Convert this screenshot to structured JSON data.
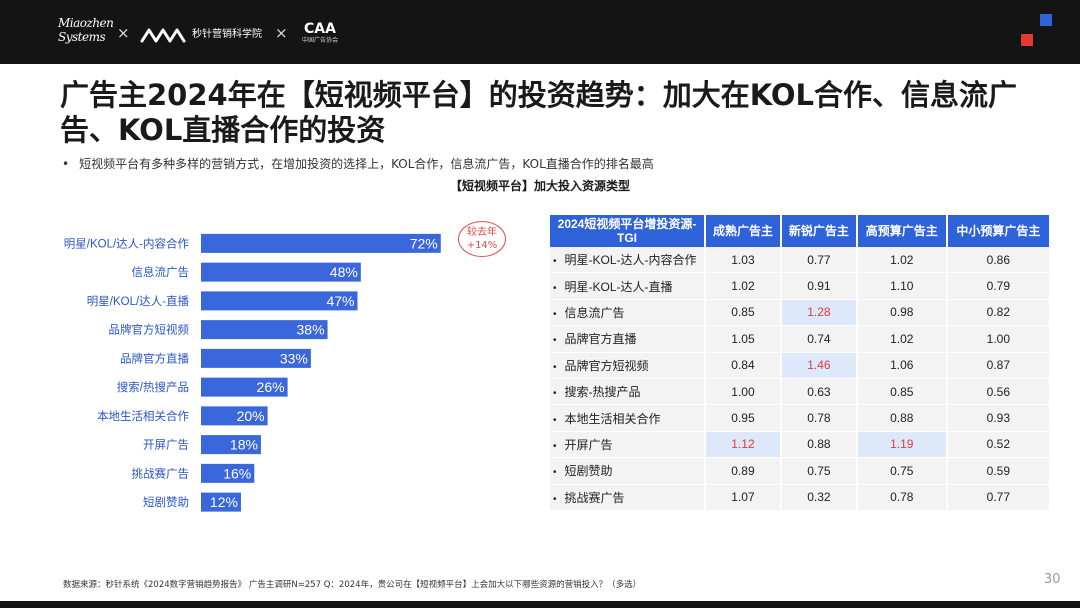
{
  "header": {
    "logo_miaozhen_line1": "Miaozhen",
    "logo_miaozhen_line2": "Systems",
    "separator": "×",
    "logo_academy_text": "秒针营销科学院",
    "logo_caa": "CAA",
    "logo_caa_sub": "中国广告协会",
    "brand_blue": "#2e62d9",
    "brand_red": "#e53935"
  },
  "title": "广告主2024年在【短视频平台】的投资趋势：加大在KOL合作、信息流广告、KOL直播合作的投资",
  "bullet": "短视频平台有多种多样的营销方式，在增加投资的选择上，KOL合作，信息流广告，KOL直播合作的排名最高",
  "chart_title": "【短视频平台】加大投入资源类型",
  "badge": {
    "line1": "较去年",
    "line2": "+14%"
  },
  "chart_data": [
    {
      "type": "bar",
      "orientation": "horizontal",
      "categories": [
        "明星/KOL/达人-内容合作",
        "信息流广告",
        "明星/KOL/达人-直播",
        "品牌官方短视频",
        "品牌官方直播",
        "搜索/热搜产品",
        "本地生活相关合作",
        "开屏广告",
        "挑战赛广告",
        "短剧赞助"
      ],
      "values": [
        72,
        48,
        47,
        38,
        33,
        26,
        20,
        18,
        16,
        12
      ],
      "labels": [
        "72%",
        "48%",
        "47%",
        "38%",
        "33%",
        "26%",
        "20%",
        "18%",
        "16%",
        "12%"
      ],
      "xlim": [
        0,
        100
      ],
      "bar_color": "#3b67dc"
    },
    {
      "type": "table",
      "columns": [
        "2024短视频平台增投资源-TGI",
        "成熟广告主",
        "新锐广告主",
        "高预算广告主",
        "中小预算广告主"
      ],
      "rows": [
        {
          "label": "明星-KOL-达人-内容合作",
          "values": [
            "1.03",
            "0.77",
            "1.02",
            "0.86"
          ],
          "highlight": [
            false,
            false,
            false,
            false
          ]
        },
        {
          "label": "明星-KOL-达人-直播",
          "values": [
            "1.02",
            "0.91",
            "1.10",
            "0.79"
          ],
          "highlight": [
            false,
            false,
            false,
            false
          ]
        },
        {
          "label": "信息流广告",
          "values": [
            "0.85",
            "1.28",
            "0.98",
            "0.82"
          ],
          "highlight": [
            false,
            true,
            false,
            false
          ]
        },
        {
          "label": "品牌官方直播",
          "values": [
            "1.05",
            "0.74",
            "1.02",
            "1.00"
          ],
          "highlight": [
            false,
            false,
            false,
            false
          ]
        },
        {
          "label": "品牌官方短视频",
          "values": [
            "0.84",
            "1.46",
            "1.06",
            "0.87"
          ],
          "highlight": [
            false,
            true,
            false,
            false
          ]
        },
        {
          "label": "搜索-热搜产品",
          "values": [
            "1.00",
            "0.63",
            "0.85",
            "0.56"
          ],
          "highlight": [
            false,
            false,
            false,
            false
          ]
        },
        {
          "label": "本地生活相关合作",
          "values": [
            "0.95",
            "0.78",
            "0.88",
            "0.93"
          ],
          "highlight": [
            false,
            false,
            false,
            false
          ]
        },
        {
          "label": "开屏广告",
          "values": [
            "1.12",
            "0.88",
            "1.19",
            "0.52"
          ],
          "highlight": [
            true,
            false,
            true,
            false
          ]
        },
        {
          "label": "短剧赞助",
          "values": [
            "0.89",
            "0.75",
            "0.75",
            "0.59"
          ],
          "highlight": [
            false,
            false,
            false,
            false
          ]
        },
        {
          "label": "挑战赛广告",
          "values": [
            "1.07",
            "0.32",
            "0.78",
            "0.77"
          ],
          "highlight": [
            false,
            false,
            false,
            false
          ]
        }
      ],
      "header_color": "#2e62d9",
      "highlight_color": "#e03a3a"
    }
  ],
  "footnote": "数据来源：秒针系统《2024数字营销趋势报告》 广告主调研N=257     Q：2024年，贵公司在【短视频平台】上会加大以下哪些资源的营销投入？（多选）",
  "page_number": "30"
}
